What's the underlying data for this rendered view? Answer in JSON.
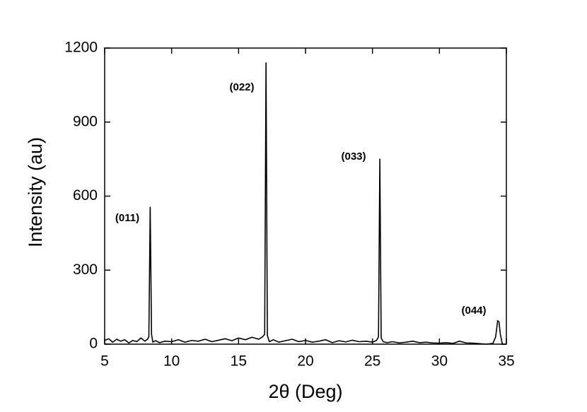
{
  "chart_data": {
    "type": "line",
    "x_label": "2θ (Deg)",
    "y_label": "Intensity (au)",
    "xlim": [
      5,
      35
    ],
    "xticks": [
      5,
      10,
      15,
      20,
      25,
      30,
      35
    ],
    "ylim": [
      0,
      1200
    ],
    "yticks": [
      0,
      300,
      600,
      900,
      1200
    ],
    "annotations": [
      "(011)",
      "(022)",
      "(033)",
      "(044)"
    ],
    "series": [
      {
        "color": "#000000",
        "x": [
          5.0,
          5.3,
          5.6,
          5.9,
          6.2,
          6.5,
          6.8,
          7.1,
          7.4,
          7.7,
          8.0,
          8.2,
          8.3,
          8.4,
          8.5,
          8.6,
          8.8,
          9.1,
          9.5,
          10,
          10.5,
          11,
          11.5,
          12,
          12.5,
          13,
          13.5,
          14,
          14.5,
          15,
          15.5,
          16,
          16.5,
          16.8,
          16.95,
          17.05,
          17.15,
          17.3,
          17.6,
          18,
          18.5,
          19,
          19.5,
          20,
          20.5,
          21,
          21.5,
          22,
          22.5,
          23,
          23.5,
          24,
          24.5,
          25,
          25.3,
          25.45,
          25.55,
          25.65,
          25.8,
          26.1,
          26.5,
          27,
          27.5,
          28,
          28.5,
          29,
          29.5,
          30,
          30.5,
          31,
          31.5,
          32,
          32.5,
          33,
          33.5,
          34,
          34.2,
          34.35,
          34.45,
          34.55,
          34.7,
          35
        ],
        "values": [
          15,
          22,
          8,
          20,
          12,
          18,
          5,
          15,
          10,
          25,
          12,
          20,
          30,
          555,
          40,
          8,
          14,
          6,
          12,
          10,
          18,
          8,
          15,
          12,
          20,
          10,
          16,
          22,
          14,
          25,
          18,
          28,
          20,
          30,
          40,
          1140,
          35,
          10,
          18,
          8,
          14,
          20,
          10,
          15,
          8,
          12,
          18,
          6,
          14,
          9,
          16,
          10,
          12,
          8,
          15,
          30,
          750,
          25,
          10,
          6,
          10,
          5,
          8,
          12,
          6,
          8,
          5,
          4,
          6,
          3,
          12,
          5,
          4,
          2,
          0,
          3,
          30,
          95,
          90,
          40,
          0,
          0
        ]
      }
    ]
  }
}
